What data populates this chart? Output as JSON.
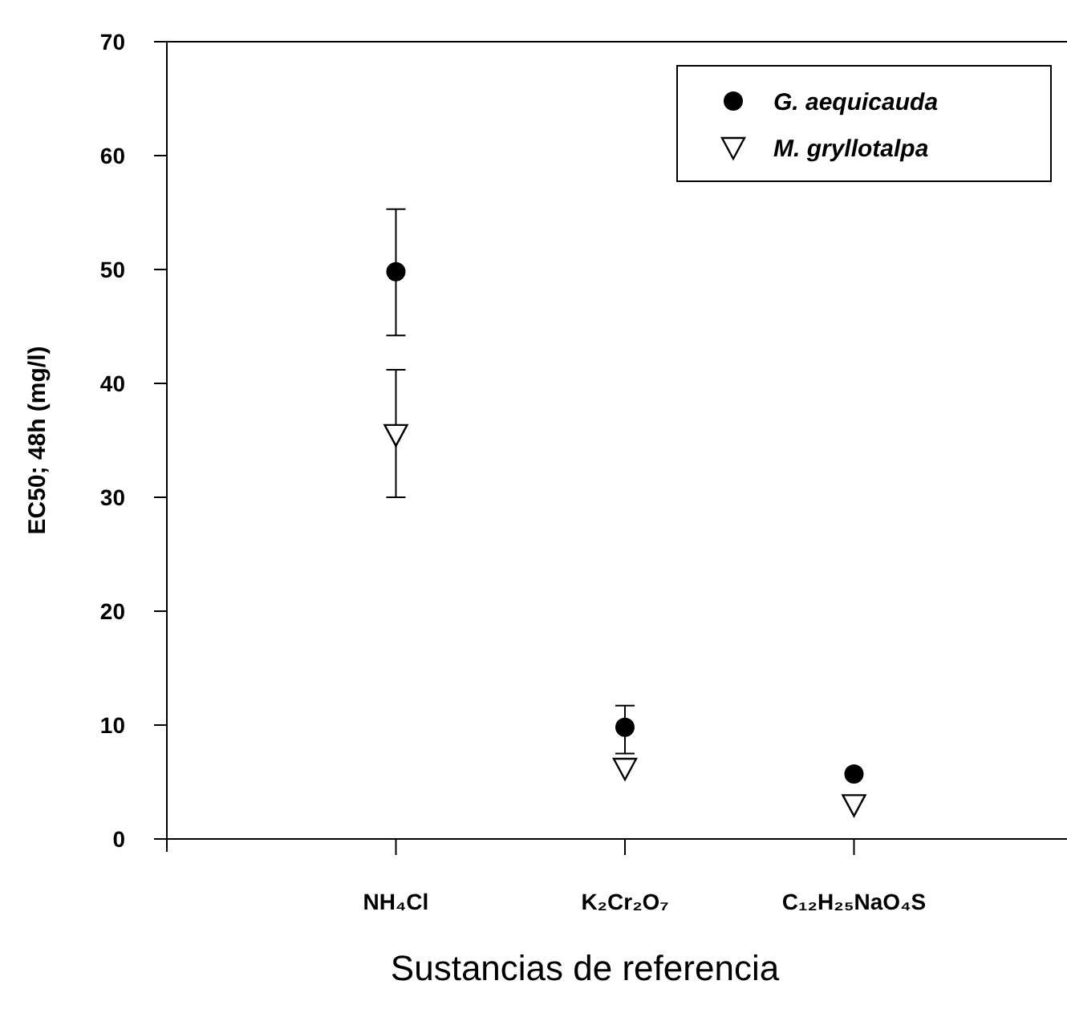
{
  "chart_data": {
    "type": "scatter",
    "xlabel": "Sustancias de referencia",
    "ylabel": "EC50; 48h (mg/l)",
    "categories": [
      "NH₄Cl",
      "K₂Cr₂O₇",
      "C₁₂H₂₅NaO₄S"
    ],
    "ylim": [
      0,
      70
    ],
    "yticks": [
      0,
      10,
      20,
      30,
      40,
      50,
      60,
      70
    ],
    "legend": "top right",
    "grid": false,
    "series": [
      {
        "name": "G. aequicauda",
        "color": "#000000",
        "marker": "circle",
        "values": [
          49.8,
          9.8,
          5.7
        ],
        "errors": [
          [
            44.2,
            55.3
          ],
          [
            7.5,
            11.7
          ],
          null
        ]
      },
      {
        "name": "M. gryllotalpa",
        "color": "#000000",
        "marker": "triangle",
        "values": [
          35.5,
          6.2,
          3.0
        ],
        "errors": [
          [
            30.0,
            41.2
          ],
          null,
          null
        ]
      }
    ]
  }
}
